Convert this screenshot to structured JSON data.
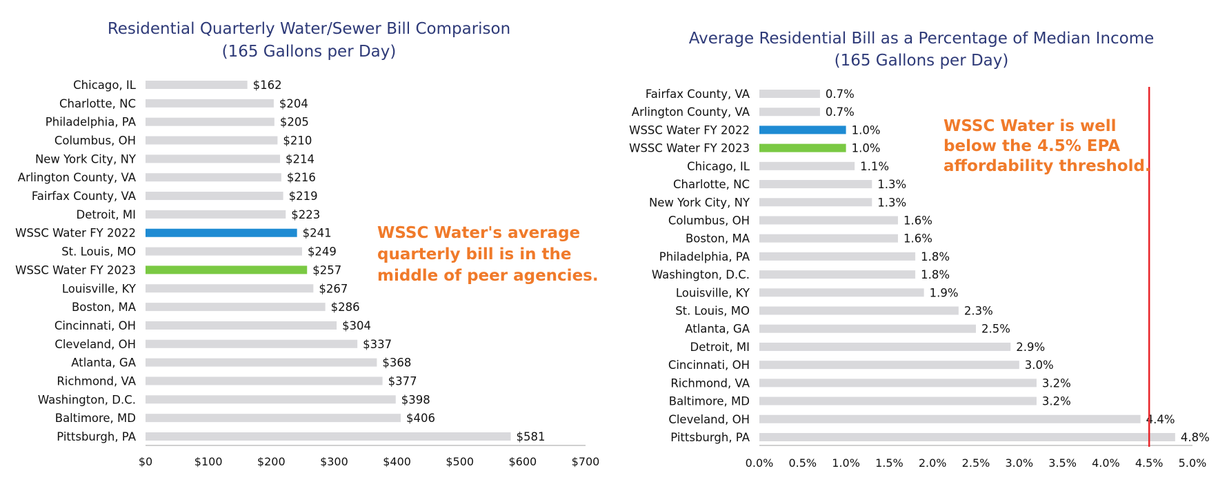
{
  "chart_data": [
    {
      "type": "bar",
      "orientation": "horizontal",
      "title": "Residential Quarterly Water/Sewer Bill Comparison",
      "subtitle": "(165 Gallons per Day)",
      "categories": [
        "Chicago, IL",
        "Charlotte, NC",
        "Philadelphia, PA",
        "Columbus, OH",
        "New York City, NY",
        "Arlington County, VA",
        "Fairfax County, VA",
        "Detroit, MI",
        "WSSC Water FY 2022",
        "St. Louis, MO",
        "WSSC Water FY 2023",
        "Louisville, KY",
        "Boston, MA",
        "Cincinnati, OH",
        "Cleveland, OH",
        "Atlanta, GA",
        "Richmond, VA",
        "Washington, D.C.",
        "Baltimore, MD",
        "Pittsburgh, PA"
      ],
      "values": [
        162,
        204,
        205,
        210,
        214,
        216,
        219,
        223,
        241,
        249,
        257,
        267,
        286,
        304,
        337,
        368,
        377,
        398,
        406,
        581
      ],
      "value_labels": [
        "$162",
        "$204",
        "$205",
        "$210",
        "$214",
        "$216",
        "$219",
        "$223",
        "$241",
        "$249",
        "$257",
        "$267",
        "$286",
        "$304",
        "$337",
        "$368",
        "$377",
        "$398",
        "$406",
        "$581"
      ],
      "bar_colors": {
        "WSSC Water FY 2022": "#1e8bd3",
        "WSSC Water FY 2023": "#7ac943"
      },
      "default_bar_color": "#d9d9dc",
      "xlim": [
        0,
        700
      ],
      "x_ticks": [
        0,
        100,
        200,
        300,
        400,
        500,
        600,
        700
      ],
      "x_tick_labels": [
        "$0",
        "$100",
        "$200",
        "$300",
        "$400",
        "$500",
        "$600",
        "$700"
      ],
      "grid": false,
      "annotation": {
        "lines": [
          "WSSC Water's average",
          "quarterly bill is in the",
          "middle of peer agencies."
        ],
        "color": "#f07a2a"
      }
    },
    {
      "type": "bar",
      "orientation": "horizontal",
      "title": "Average Residential Bill as a Percentage of Median Income",
      "subtitle": "(165 Gallons per Day)",
      "categories": [
        "Fairfax County, VA",
        "Arlington County, VA",
        "WSSC Water FY 2022",
        "WSSC Water FY 2023",
        "Chicago, IL",
        "Charlotte, NC",
        "New York City, NY",
        "Columbus, OH",
        "Boston, MA",
        "Philadelphia, PA",
        "Washington, D.C.",
        "Louisville, KY",
        "St. Louis, MO",
        "Atlanta, GA",
        "Detroit, MI",
        "Cincinnati, OH",
        "Richmond, VA",
        "Baltimore, MD",
        "Cleveland, OH",
        "Pittsburgh, PA"
      ],
      "values": [
        0.7,
        0.7,
        1.0,
        1.0,
        1.1,
        1.3,
        1.3,
        1.6,
        1.6,
        1.8,
        1.8,
        1.9,
        2.3,
        2.5,
        2.9,
        3.0,
        3.2,
        3.2,
        4.4,
        4.8
      ],
      "value_labels": [
        "0.7%",
        "0.7%",
        "1.0%",
        "1.0%",
        "1.1%",
        "1.3%",
        "1.3%",
        "1.6%",
        "1.6%",
        "1.8%",
        "1.8%",
        "1.9%",
        "2.3%",
        "2.5%",
        "2.9%",
        "3.0%",
        "3.2%",
        "3.2%",
        "4.4%",
        "4.8%"
      ],
      "bar_colors": {
        "WSSC Water FY 2022": "#1e8bd3",
        "WSSC Water FY 2023": "#7ac943"
      },
      "default_bar_color": "#d9d9dc",
      "xlim": [
        0,
        5.0
      ],
      "x_ticks": [
        0,
        0.5,
        1.0,
        1.5,
        2.0,
        2.5,
        3.0,
        3.5,
        4.0,
        4.5,
        5.0
      ],
      "x_tick_labels": [
        "0.0%",
        "0.5%",
        "1.0%",
        "1.5%",
        "2.0%",
        "2.5%",
        "3.0%",
        "3.5%",
        "4.0%",
        "4.5%",
        "5.0%"
      ],
      "reference_line": {
        "value": 4.5,
        "color": "#e8252a"
      },
      "grid": false,
      "annotation": {
        "lines": [
          "WSSC Water is well",
          "below the 4.5% EPA",
          "affordability threshold."
        ],
        "color": "#f07a2a"
      }
    }
  ]
}
